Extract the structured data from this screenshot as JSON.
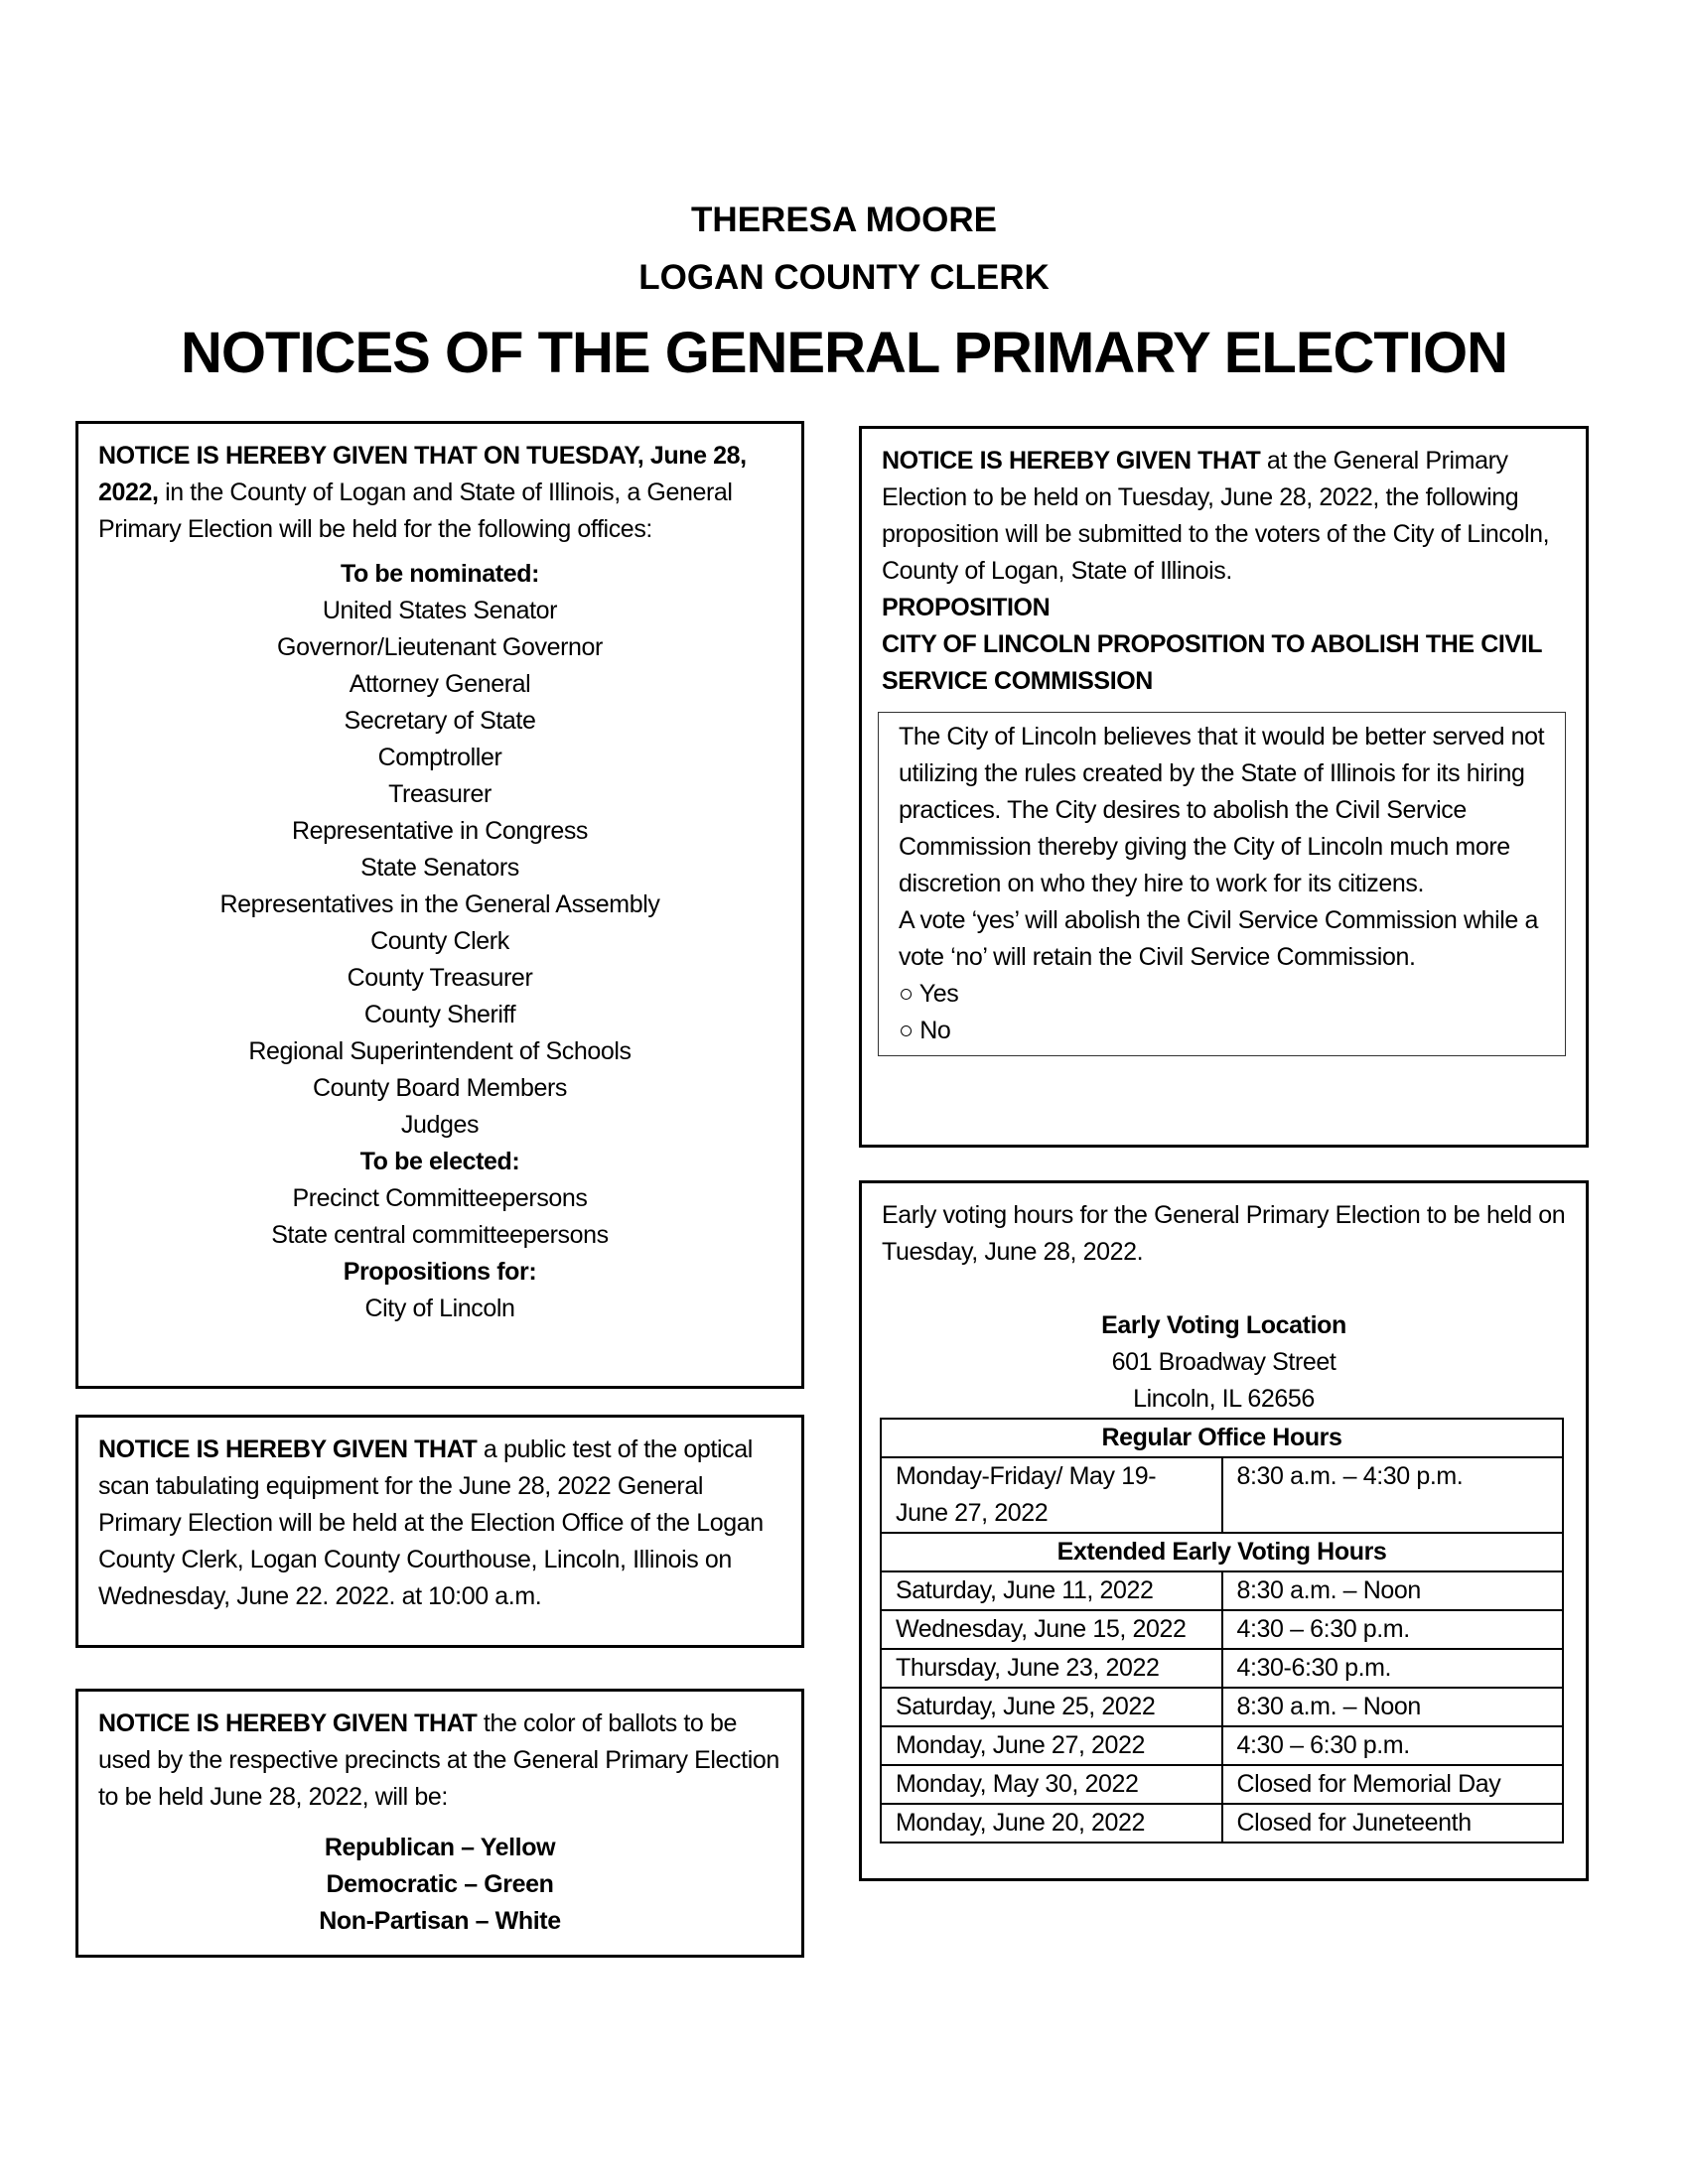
{
  "header": {
    "name": "THERESA MOORE",
    "office": "LOGAN COUNTY CLERK",
    "title": "NOTICES OF THE GENERAL PRIMARY ELECTION"
  },
  "offices_notice": {
    "lead_bold": "NOTICE IS HEREBY GIVEN THAT ON TUESDAY, June 28, 2022,",
    "lead_text": " in the County of Logan and State of Illinois, a General Primary Election will be held for the following offices:",
    "nominated_heading": "To be nominated:",
    "nominated": [
      "United States Senator",
      "Governor/Lieutenant Governor",
      "Attorney General",
      "Secretary of State",
      "Comptroller",
      "Treasurer",
      "Representative in Congress",
      "State Senators",
      "Representatives in the General Assembly",
      "County Clerk",
      "County Treasurer",
      "County Sheriff",
      "Regional Superintendent of Schools",
      "County Board Members",
      "Judges"
    ],
    "elected_heading": "To be elected:",
    "elected": [
      "Precinct Committeepersons",
      "State central committeepersons"
    ],
    "propositions_heading": "Propositions for:",
    "propositions": [
      "City of Lincoln"
    ]
  },
  "test_notice": {
    "lead_bold": "NOTICE IS HEREBY GIVEN THAT",
    "text": " a public test of the optical scan tabulating equipment for the June 28, 2022 General Primary Election will be held at the Election Office of the Logan County Clerk, Logan County Courthouse, Lincoln, Illinois on Wednesday, June 22. 2022. at 10:00 a.m."
  },
  "ballot_notice": {
    "lead_bold": "NOTICE IS HEREBY GIVEN THAT",
    "text": " the color of ballots to be used by the respective precincts at the General Primary Election to be held June 28, 2022, will be:",
    "colors": [
      "Republican – Yellow",
      "Democratic – Green",
      "Non-Partisan – White"
    ]
  },
  "proposition_notice": {
    "lead_bold": "NOTICE IS HEREBY GIVEN THAT",
    "text": " at the General Primary Election to be held on Tuesday, June 28, 2022, the following proposition will be submitted to the voters of the City of Lincoln, County of Logan, State of Illinois.",
    "label": "PROPOSITION",
    "title": "CITY OF LINCOLN PROPOSITION TO ABOLISH THE CIVIL SERVICE COMMISSION",
    "body": "The City of Lincoln believes that it would be better served not utilizing the rules created by the State of Illinois for its hiring practices. The City desires to abolish the Civil Service Commission thereby giving the City of Lincoln much more discretion on who they hire to work for its citizens.",
    "vote_text": "A vote ‘yes’ will abolish the Civil Service Commission while a vote ‘no’ will retain the Civil Service Commission.",
    "options": [
      "Yes",
      "No"
    ]
  },
  "early_voting": {
    "intro": "Early voting hours for the General Primary Election to be held on Tuesday, June 28, 2022.",
    "location_heading": "Early Voting Location",
    "address1": "601 Broadway Street",
    "address2": "Lincoln, IL 62656",
    "regular_heading": "Regular Office Hours",
    "regular": {
      "days": "Monday-Friday/ May 19-June 27, 2022",
      "hours": "8:30 a.m. – 4:30 p.m."
    },
    "extended_heading": "Extended Early Voting Hours",
    "extended": [
      [
        "Saturday, June 11, 2022",
        "8:30 a.m. – Noon"
      ],
      [
        "Wednesday, June 15, 2022",
        "4:30 – 6:30 p.m."
      ],
      [
        "Thursday, June 23, 2022",
        "4:30-6:30 p.m."
      ],
      [
        "Saturday, June 25, 2022",
        "8:30 a.m. – Noon"
      ],
      [
        "Monday, June 27, 2022",
        "4:30 – 6:30 p.m."
      ],
      [
        "Monday, May 30, 2022",
        "Closed for Memorial Day"
      ],
      [
        "Monday, June 20, 2022",
        "Closed for Juneteenth"
      ]
    ]
  }
}
